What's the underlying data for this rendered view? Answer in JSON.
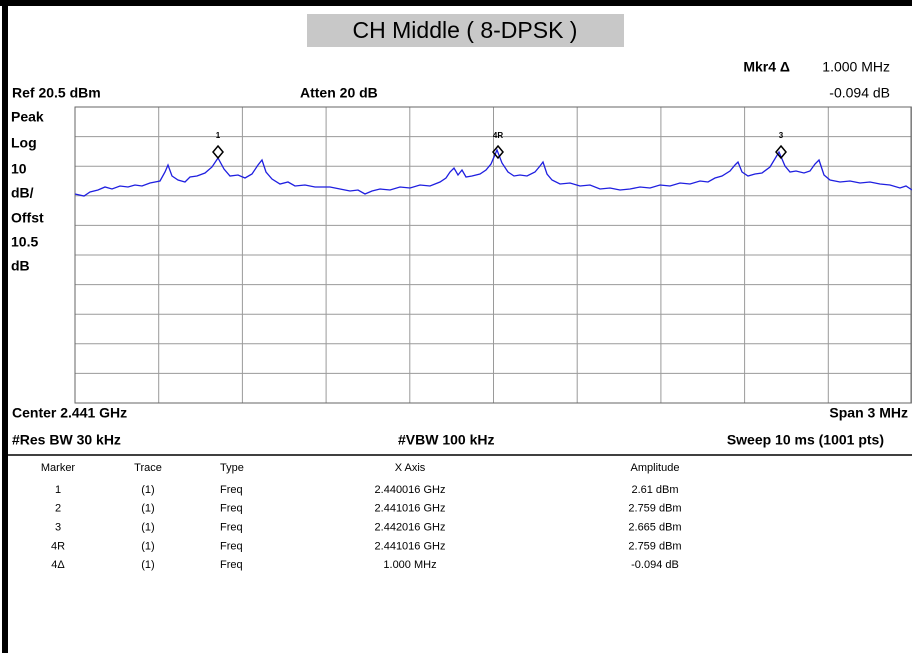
{
  "title": "CH Middle ( 8-DPSK )",
  "marker_readout": {
    "label": "Mkr4 Δ",
    "x": "1.000 MHz",
    "y": "-0.094 dB"
  },
  "ref": "Ref 20.5 dBm",
  "atten": "Atten 20 dB",
  "scale_labels": [
    "Peak",
    "Log",
    "10",
    "dB/",
    "Offst",
    "10.5",
    "dB"
  ],
  "markers": [
    "1",
    "4R",
    "3"
  ],
  "center": "Center 2.441 GHz",
  "span": "Span 3 MHz",
  "res_bw": "#Res BW 30 kHz",
  "vbw": "#VBW 100 kHz",
  "sweep": "Sweep 10 ms (1001 pts)",
  "table": {
    "columns": [
      "Marker",
      "Trace",
      "Type",
      "X Axis",
      "Amplitude"
    ],
    "rows": [
      [
        "1",
        "(1)",
        "Freq",
        "2.440016 GHz",
        "2.61 dBm"
      ],
      [
        "2",
        "(1)",
        "Freq",
        "2.441016 GHz",
        "2.759 dBm"
      ],
      [
        "3",
        "(1)",
        "Freq",
        "2.442016 GHz",
        "2.665 dBm"
      ],
      [
        "4R",
        "(1)",
        "Freq",
        "2.441016 GHz",
        "2.759 dBm"
      ],
      [
        "4Δ",
        "(1)",
        "Freq",
        "1.000 MHz",
        "-0.094 dB"
      ]
    ]
  }
}
